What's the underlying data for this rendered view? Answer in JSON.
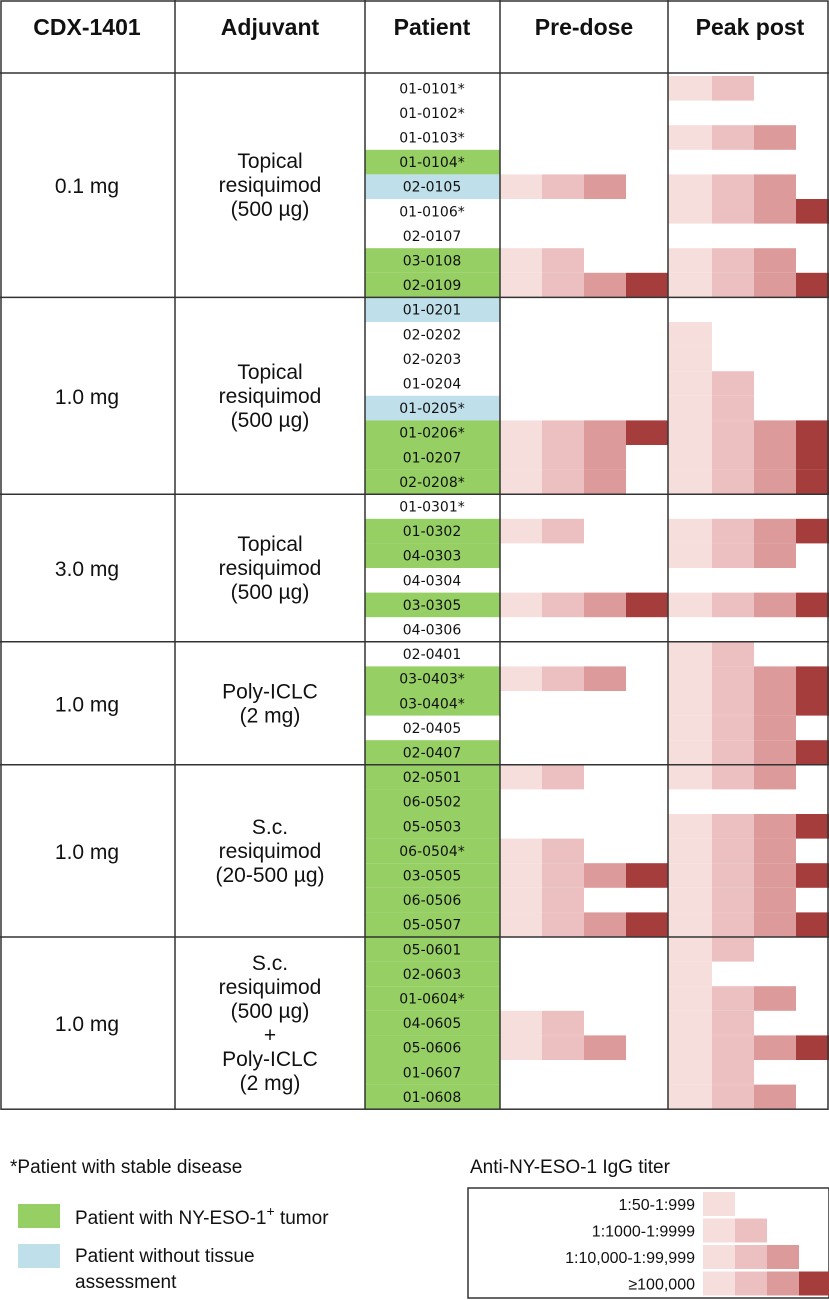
{
  "colors": {
    "green": "#96cf63",
    "blue": "#bfe0ea",
    "titer": [
      "#f6dedd",
      "#ecc0c0",
      "#dd9a9a",
      "#a63d3d"
    ],
    "grid": "#333333"
  },
  "headers": [
    "CDX-1401",
    "Adjuvant",
    "Patient",
    "Pre-dose",
    "Peak post"
  ],
  "chart_data": {
    "type": "heatmap",
    "value_meaning": "number of titer boxes filled (0 = none, 1 = 1:50-1:999, 2 = 1:1000-1:9999, 3 = 1:10,000-1:99,999, 4 = >=100,000)",
    "groups": [
      {
        "dose": "0.1 mg",
        "adjuvant": [
          "Topical",
          "resiquimod",
          "(500 µg)"
        ],
        "patients": [
          {
            "id": "01-0101*",
            "highlight": "none",
            "pre": 0,
            "post": 2
          },
          {
            "id": "01-0102*",
            "highlight": "none",
            "pre": 0,
            "post": 0
          },
          {
            "id": "01-0103*",
            "highlight": "none",
            "pre": 0,
            "post": 3
          },
          {
            "id": "01-0104*",
            "highlight": "green",
            "pre": 0,
            "post": 0
          },
          {
            "id": "02-0105",
            "highlight": "blue",
            "pre": 3,
            "post": 3
          },
          {
            "id": "01-0106*",
            "highlight": "none",
            "pre": 0,
            "post": 4
          },
          {
            "id": "02-0107",
            "highlight": "none",
            "pre": 0,
            "post": 0
          },
          {
            "id": "03-0108",
            "highlight": "green",
            "pre": 2,
            "post": 3
          },
          {
            "id": "02-0109",
            "highlight": "green",
            "pre": 4,
            "post": 4
          }
        ]
      },
      {
        "dose": "1.0 mg",
        "adjuvant": [
          "Topical",
          "resiquimod",
          "(500 µg)"
        ],
        "patients": [
          {
            "id": "01-0201",
            "highlight": "blue",
            "pre": 0,
            "post": 0
          },
          {
            "id": "02-0202",
            "highlight": "none",
            "pre": 0,
            "post": 1
          },
          {
            "id": "02-0203",
            "highlight": "none",
            "pre": 0,
            "post": 1
          },
          {
            "id": "01-0204",
            "highlight": "none",
            "pre": 0,
            "post": 2
          },
          {
            "id": "01-0205*",
            "highlight": "blue",
            "pre": 0,
            "post": 2
          },
          {
            "id": "01-0206*",
            "highlight": "green",
            "pre": 4,
            "post": 4
          },
          {
            "id": "01-0207",
            "highlight": "green",
            "pre": 3,
            "post": 4
          },
          {
            "id": "02-0208*",
            "highlight": "green",
            "pre": 3,
            "post": 4
          }
        ]
      },
      {
        "dose": "3.0 mg",
        "adjuvant": [
          "Topical",
          "resiquimod",
          "(500 µg)"
        ],
        "patients": [
          {
            "id": "01-0301*",
            "highlight": "none",
            "pre": 0,
            "post": 0
          },
          {
            "id": "01-0302",
            "highlight": "green",
            "pre": 2,
            "post": 4
          },
          {
            "id": "04-0303",
            "highlight": "green",
            "pre": 0,
            "post": 3
          },
          {
            "id": "04-0304",
            "highlight": "none",
            "pre": 0,
            "post": 0
          },
          {
            "id": "03-0305",
            "highlight": "green",
            "pre": 4,
            "post": 4
          },
          {
            "id": "04-0306",
            "highlight": "none",
            "pre": 0,
            "post": 0
          }
        ]
      },
      {
        "dose": "1.0 mg",
        "adjuvant": [
          "Poly-ICLC",
          "(2 mg)"
        ],
        "patients": [
          {
            "id": "02-0401",
            "highlight": "none",
            "pre": 0,
            "post": 2
          },
          {
            "id": "03-0403*",
            "highlight": "green",
            "pre": 3,
            "post": 4
          },
          {
            "id": "03-0404*",
            "highlight": "green",
            "pre": 0,
            "post": 4
          },
          {
            "id": "02-0405",
            "highlight": "none",
            "pre": 0,
            "post": 3
          },
          {
            "id": "02-0407",
            "highlight": "green",
            "pre": 0,
            "post": 4
          }
        ]
      },
      {
        "dose": "1.0 mg",
        "adjuvant": [
          "S.c.",
          "resiquimod",
          "(20-500 µg)"
        ],
        "patients": [
          {
            "id": "02-0501",
            "highlight": "green",
            "pre": 2,
            "post": 3
          },
          {
            "id": "06-0502",
            "highlight": "green",
            "pre": 0,
            "post": 0
          },
          {
            "id": "05-0503",
            "highlight": "green",
            "pre": 0,
            "post": 4
          },
          {
            "id": "06-0504*",
            "highlight": "green",
            "pre": 2,
            "post": 3
          },
          {
            "id": "03-0505",
            "highlight": "green",
            "pre": 4,
            "post": 4
          },
          {
            "id": "06-0506",
            "highlight": "green",
            "pre": 2,
            "post": 3
          },
          {
            "id": "05-0507",
            "highlight": "green",
            "pre": 4,
            "post": 4
          }
        ]
      },
      {
        "dose": "1.0 mg",
        "adjuvant": [
          "S.c.",
          "resiquimod",
          "(500 µg)",
          "+",
          "Poly-ICLC",
          "(2 mg)"
        ],
        "patients": [
          {
            "id": "05-0601",
            "highlight": "green",
            "pre": 0,
            "post": 2
          },
          {
            "id": "02-0603",
            "highlight": "green",
            "pre": 0,
            "post": 1
          },
          {
            "id": "01-0604*",
            "highlight": "green",
            "pre": 0,
            "post": 3
          },
          {
            "id": "04-0605",
            "highlight": "green",
            "pre": 2,
            "post": 2
          },
          {
            "id": "05-0606",
            "highlight": "green",
            "pre": 3,
            "post": 4
          },
          {
            "id": "01-0607",
            "highlight": "green",
            "pre": 0,
            "post": 2
          },
          {
            "id": "01-0608",
            "highlight": "green",
            "pre": 0,
            "post": 3
          }
        ]
      }
    ]
  },
  "legend": {
    "footnote": "*Patient with stable disease",
    "green_label_main": "Patient with NY-ESO-1",
    "green_label_sup": "+",
    "green_label_end": " tumor",
    "blue_label_line1": "Patient without tissue",
    "blue_label_line2": "assessment",
    "titer_title": "Anti-NY-ESO-1 IgG titer",
    "titer_levels": [
      "1:50-1:999",
      "1:1000-1:9999",
      "1:10,000-1:99,999",
      "≥100,000"
    ]
  }
}
